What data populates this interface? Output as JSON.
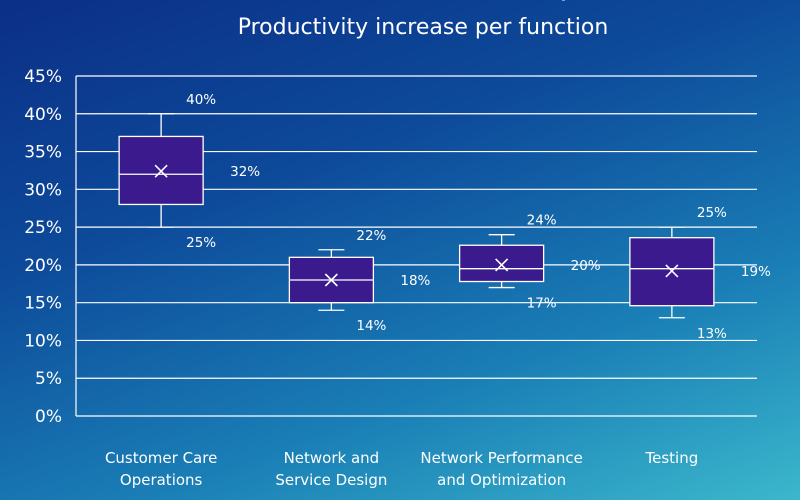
{
  "chart_data": {
    "type": "box",
    "title_lines": [
      "Generative AI for Telcos Analysis",
      "Productivity increase per function"
    ],
    "xlabel": "",
    "ylabel": "",
    "ylim": [
      0,
      45
    ],
    "y_ticks": [
      "0%",
      "5%",
      "10%",
      "15%",
      "20%",
      "25%",
      "30%",
      "35%",
      "40%",
      "45%"
    ],
    "y_tick_values": [
      0,
      5,
      10,
      15,
      20,
      25,
      30,
      35,
      40,
      45
    ],
    "grid": true,
    "box_color": "#3a1a8c",
    "line_color": "#ffffff",
    "categories": [
      {
        "label_lines": [
          "Customer Care",
          "Operations"
        ],
        "min": 25,
        "q1": 28,
        "median": 32,
        "q3": 37,
        "max": 40,
        "mean": 32.4,
        "labels": {
          "max": "40%",
          "mean": "32%",
          "min": "25%"
        }
      },
      {
        "label_lines": [
          "Network and",
          "Service Design"
        ],
        "min": 14,
        "q1": 15,
        "median": 18,
        "q3": 21,
        "max": 22,
        "mean": 18,
        "labels": {
          "max": "22%",
          "mean": "18%",
          "min": "14%"
        }
      },
      {
        "label_lines": [
          "Network Performance",
          "and Optimization"
        ],
        "min": 17,
        "q1": 17.8,
        "median": 19.5,
        "q3": 22.6,
        "max": 24,
        "mean": 20,
        "labels": {
          "max": "24%",
          "mean": "20%",
          "min": "17%"
        }
      },
      {
        "label_lines": [
          "Testing"
        ],
        "min": 13,
        "q1": 14.6,
        "median": 19.5,
        "q3": 23.6,
        "max": 25,
        "mean": 19.2,
        "labels": {
          "max": "25%",
          "mean": "19%",
          "min": "13%"
        }
      }
    ]
  }
}
